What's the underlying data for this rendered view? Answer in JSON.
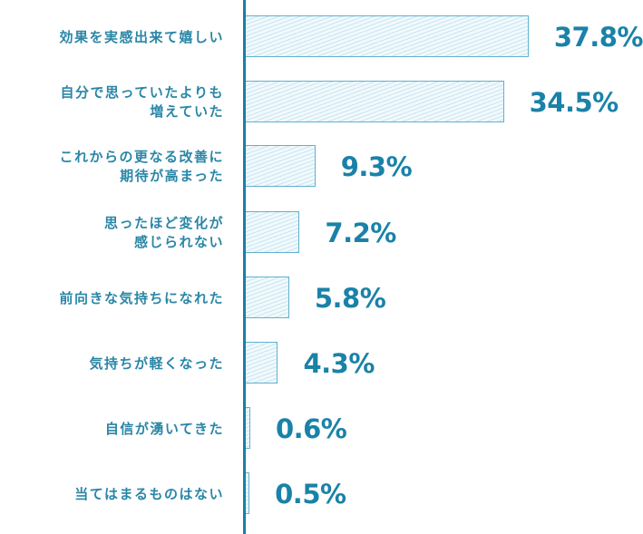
{
  "chart_data": {
    "type": "bar",
    "orientation": "horizontal",
    "categories": [
      "効果を実感出来て嬉しい",
      "自分で思っていたよりも増えていた",
      "これからの更なる改善に期待が高まった",
      "思ったほど変化が感じられない",
      "前向きな気持ちになれた",
      "気持ちが軽くなった",
      "自信が湧いてきた",
      "当てはまるものはない"
    ],
    "values": [
      37.8,
      34.5,
      9.3,
      7.2,
      5.8,
      4.3,
      0.6,
      0.5
    ],
    "value_labels": [
      "37.8%",
      "34.5%",
      "9.3%",
      "7.2%",
      "5.8%",
      "4.3%",
      "0.6%",
      "0.5%"
    ],
    "title": "",
    "xlabel": "",
    "ylabel": "",
    "unit": "%",
    "grid": false,
    "legend": null,
    "colors": {
      "bar_fill": "#f1f9fc",
      "bar_border": "#62b0d0",
      "axis": "#1a7fa6",
      "label_text": "#2a86a6",
      "value_text": "#1a82a8"
    }
  },
  "rows": [
    {
      "label_lines": [
        "効果を実感出来て嬉しい"
      ],
      "value": "37.8%"
    },
    {
      "label_lines": [
        "自分で思っていたよりも",
        "増えていた"
      ],
      "value": "34.5%"
    },
    {
      "label_lines": [
        "これからの更なる改善に",
        "期待が高まった"
      ],
      "value": "9.3%"
    },
    {
      "label_lines": [
        "思ったほど変化が",
        "感じられない"
      ],
      "value": "7.2%"
    },
    {
      "label_lines": [
        "前向きな気持ちになれた"
      ],
      "value": "5.8%"
    },
    {
      "label_lines": [
        "気持ちが軽くなった"
      ],
      "value": "4.3%"
    },
    {
      "label_lines": [
        "自信が湧いてきた"
      ],
      "value": "0.6%"
    },
    {
      "label_lines": [
        "当てはまるものはない"
      ],
      "value": "0.5%"
    }
  ]
}
